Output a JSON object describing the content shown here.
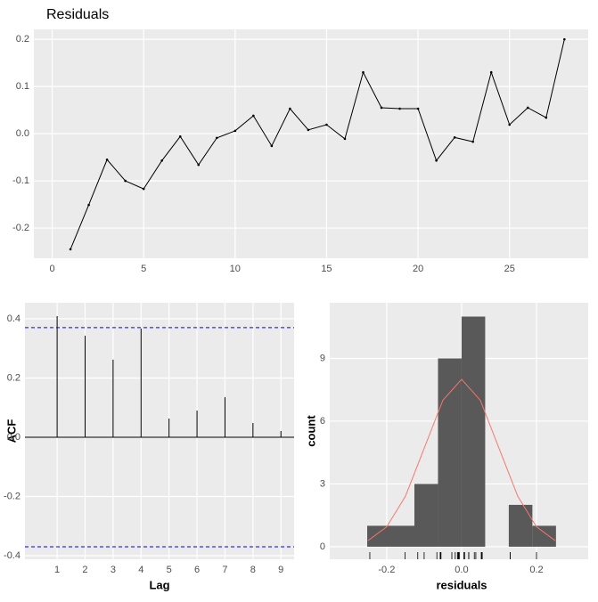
{
  "chart_data": [
    {
      "type": "line",
      "title": "Residuals",
      "color": "#000000",
      "x": [
        1,
        2,
        3,
        4,
        5,
        6,
        7,
        8,
        9,
        10,
        11,
        12,
        13,
        14,
        15,
        16,
        17,
        18,
        19,
        20,
        21,
        22,
        23,
        24,
        25,
        26,
        27,
        28
      ],
      "values": [
        -0.245,
        -0.151,
        -0.055,
        -0.1,
        -0.117,
        -0.057,
        -0.006,
        -0.066,
        -0.009,
        0.006,
        0.038,
        -0.026,
        0.053,
        0.008,
        0.019,
        -0.011,
        0.13,
        0.055,
        0.053,
        0.053,
        -0.057,
        -0.008,
        -0.017,
        0.13,
        0.019,
        0.055,
        0.034,
        0.2
      ],
      "xlim": [
        -1.0,
        29.3
      ],
      "xticks": [
        0,
        5,
        10,
        15,
        20,
        25
      ],
      "ylim": [
        -0.264,
        0.221
      ],
      "yticks": [
        0.2,
        0.1,
        {
          "value": 0,
          "label": "0.0"
        },
        -0.1,
        -0.2
      ],
      "grid": true
    },
    {
      "type": "acf",
      "x_label": "Lag",
      "y_label": "ACF",
      "color": "#000000",
      "x": [
        1,
        2,
        3,
        4,
        5,
        6,
        7,
        8,
        9
      ],
      "values": [
        0.409,
        0.343,
        0.262,
        0.367,
        0.063,
        0.09,
        0.135,
        0.048,
        0.021
      ],
      "conf_limits": [
        0.37,
        -0.37
      ],
      "conf_color": "#0000ff",
      "xlim": [
        -0.15,
        9.47
      ],
      "xticks": [
        1,
        2,
        3,
        4,
        5,
        6,
        7,
        8,
        9
      ],
      "ylim": [
        -0.412,
        0.454
      ],
      "yticks": [
        0.4,
        0.2,
        {
          "value": 0,
          "label": "0.0"
        },
        -0.2,
        -0.4
      ],
      "grid": true
    },
    {
      "type": "histogram",
      "x_label": "residuals",
      "y_label": "count",
      "color": "#595959",
      "bins": [
        -0.252,
        -0.189,
        -0.126,
        -0.063,
        0,
        0.063,
        0.126,
        0.189,
        0.252
      ],
      "counts": [
        1,
        1,
        3,
        9,
        11,
        0,
        2,
        1
      ],
      "curve": {
        "color": "#f8766d",
        "x": [
          -0.25,
          -0.2,
          -0.15,
          -0.1,
          -0.05,
          0,
          0.05,
          0.1,
          0.15,
          0.2,
          0.25
        ],
        "y": [
          0.29,
          0.95,
          2.41,
          4.7,
          7.0,
          8,
          7.0,
          4.7,
          2.41,
          0.95,
          0.29
        ]
      },
      "rug": true,
      "xlim": [
        -0.352,
        0.338
      ],
      "xticks": [
        -0.2,
        {
          "value": 0,
          "label": "0.0"
        },
        0.2
      ],
      "ylim": [
        -0.6,
        11.66
      ],
      "yticks": [
        0,
        3,
        6,
        9
      ],
      "grid": true
    }
  ]
}
